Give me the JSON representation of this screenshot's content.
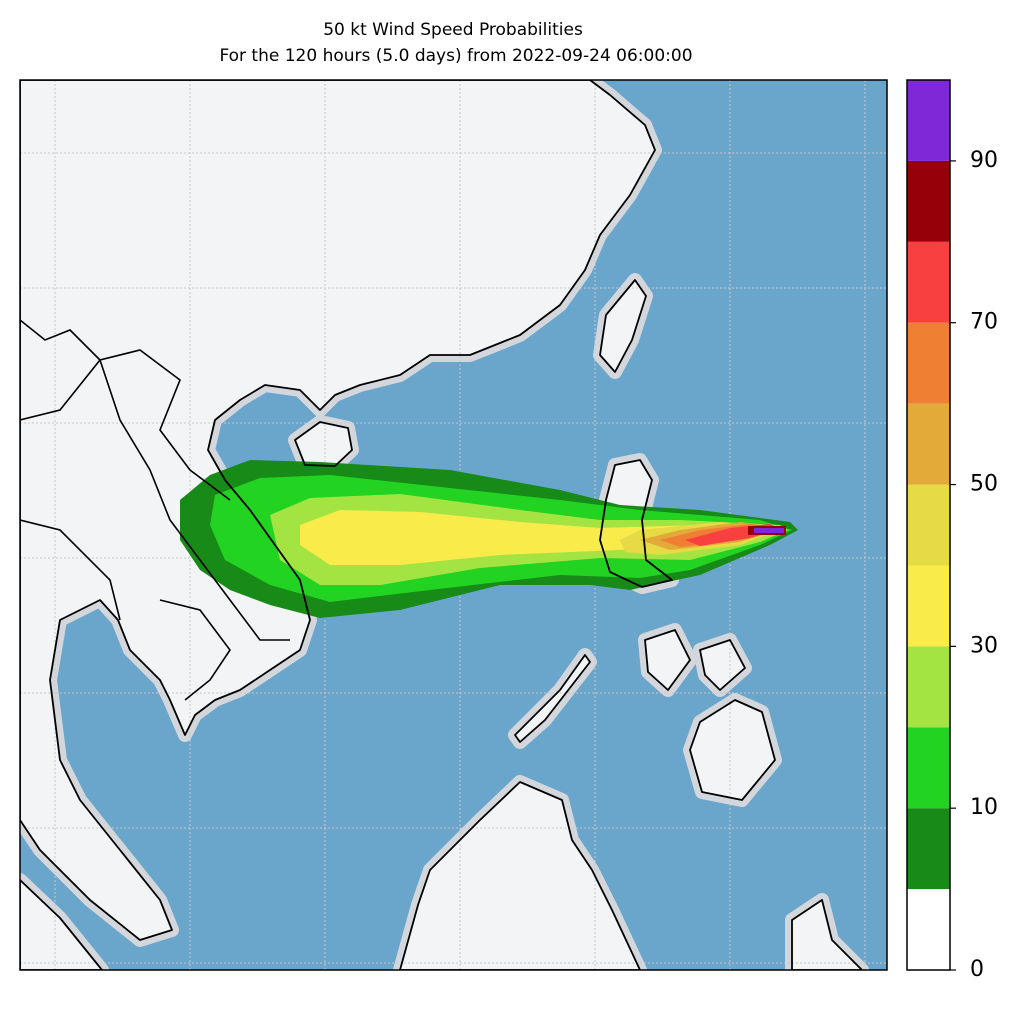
{
  "chart_data": {
    "type": "map",
    "title": "50 kt Wind Speed Probabilities",
    "subtitle": "For the 120 hours (5.0 days) from 2022-09-24 06:00:00",
    "colorbar": {
      "levels": [
        0,
        5,
        10,
        20,
        30,
        40,
        50,
        60,
        70,
        80,
        90,
        100
      ],
      "colors": [
        "#ffffff",
        "#178a17",
        "#22d322",
        "#a3e443",
        "#f9eb4a",
        "#e6da45",
        "#e3aa3a",
        "#ef8033",
        "#f84040",
        "#960008",
        "#7f28d8"
      ],
      "ticks": [
        0,
        10,
        30,
        50,
        70,
        90
      ]
    }
  }
}
